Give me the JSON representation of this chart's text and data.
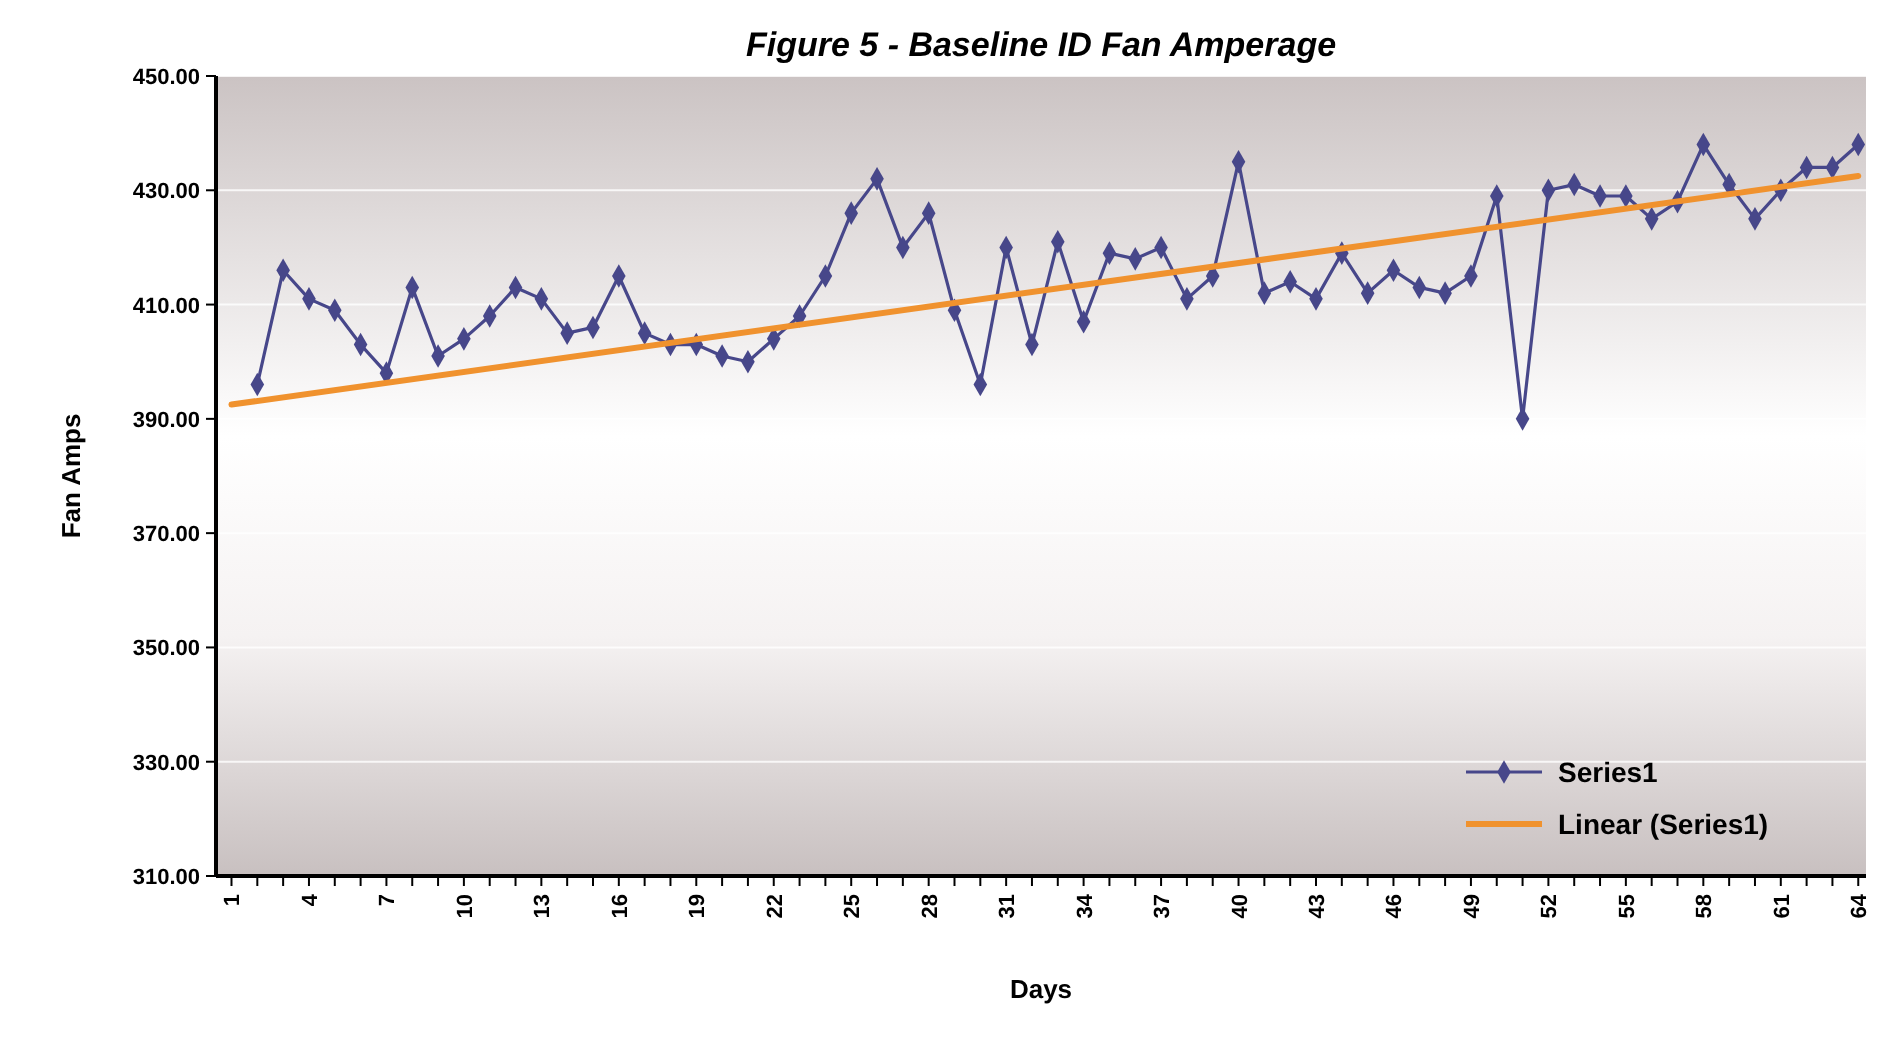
{
  "chart_data": {
    "type": "line",
    "title": "Figure 5 - Baseline ID Fan Amperage",
    "xlabel": "Days",
    "ylabel": "Fan Amps",
    "x": [
      2,
      3,
      4,
      5,
      6,
      7,
      8,
      9,
      10,
      11,
      12,
      13,
      14,
      15,
      16,
      17,
      18,
      19,
      20,
      21,
      22,
      23,
      24,
      25,
      26,
      27,
      28,
      29,
      30,
      31,
      32,
      33,
      34,
      35,
      36,
      37,
      38,
      39,
      40,
      41,
      42,
      43,
      44,
      45,
      46,
      47,
      48,
      49,
      50,
      51,
      52,
      53,
      54,
      55,
      56,
      57,
      58,
      59,
      60,
      61,
      62,
      63,
      64
    ],
    "series": [
      {
        "name": "Series1",
        "color": "#47478a",
        "marker": "diamond",
        "values": [
          396,
          416,
          411,
          409,
          403,
          398,
          413,
          401,
          404,
          408,
          413,
          411,
          405,
          406,
          415,
          405,
          403,
          403,
          401,
          400,
          404,
          408,
          415,
          426,
          432,
          420,
          426,
          409,
          396,
          420,
          403,
          421,
          407,
          419,
          418,
          420,
          411,
          415,
          435,
          412,
          414,
          411,
          419,
          412,
          416,
          413,
          412,
          415,
          429,
          390,
          430,
          431,
          429,
          429,
          425,
          428,
          438,
          431,
          425,
          430,
          434,
          434,
          438
        ]
      },
      {
        "name": "Linear (Series1)",
        "type": "line",
        "color": "#f0922e",
        "marker": "none",
        "x": [
          1,
          64
        ],
        "values": [
          392.5,
          432.5
        ]
      }
    ],
    "xlim": [
      0.4,
      64.3
    ],
    "xticks": [
      1,
      4,
      7,
      10,
      13,
      16,
      19,
      22,
      25,
      28,
      31,
      34,
      37,
      40,
      43,
      46,
      49,
      52,
      55,
      58,
      61,
      64
    ],
    "ylim": [
      310,
      450
    ],
    "yticks": [
      {
        "value": 310,
        "label": "310.00"
      },
      {
        "value": 330,
        "label": "330.00"
      },
      {
        "value": 350,
        "label": "350.00"
      },
      {
        "value": 370,
        "label": "370.00"
      },
      {
        "value": 390,
        "label": "390.00"
      },
      {
        "value": 410,
        "label": "410.00"
      },
      {
        "value": 430,
        "label": "430.00"
      },
      {
        "value": 450,
        "label": "450.00"
      }
    ],
    "grid": "y",
    "legend": "bottom right"
  }
}
